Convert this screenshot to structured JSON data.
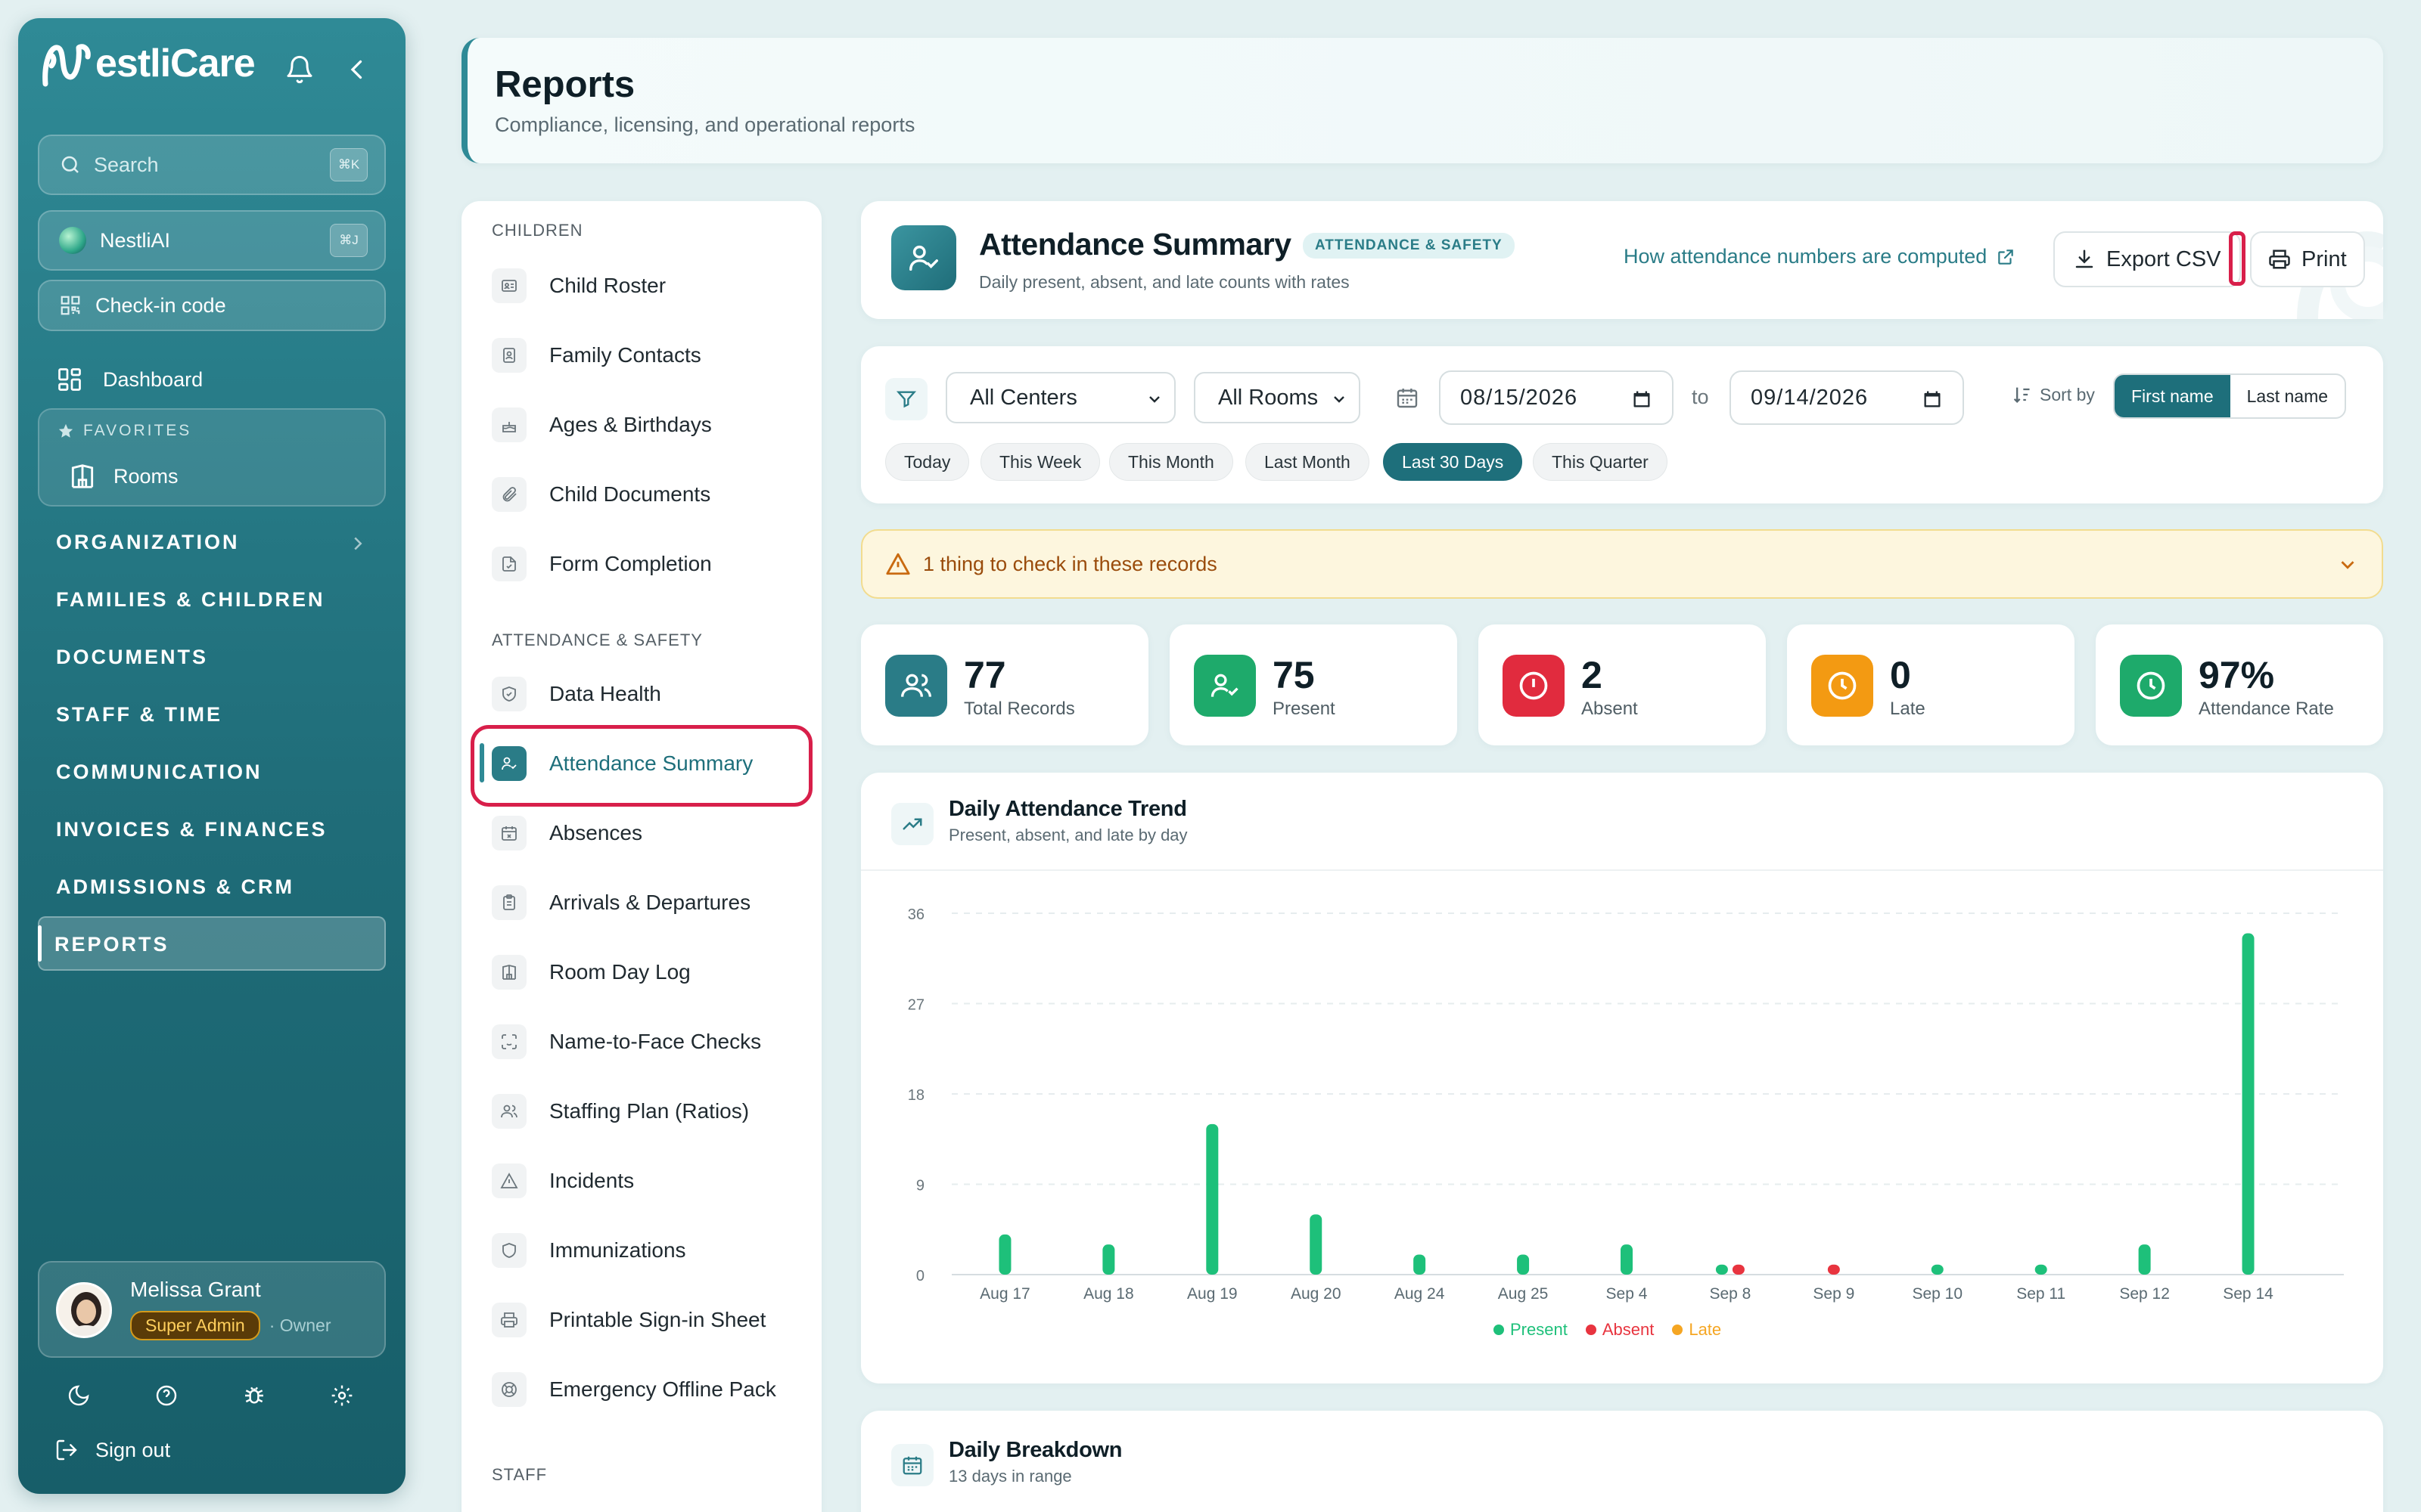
{
  "sidebar": {
    "brand": "estliCare",
    "search": {
      "label": "Search",
      "kbd": "⌘K"
    },
    "ai": {
      "label": "NestliAI",
      "kbd": "⌘J"
    },
    "checkin": "Check-in code",
    "dashboard": "Dashboard",
    "favorites": {
      "title": "FAVORITES",
      "items": [
        "Rooms"
      ]
    },
    "sections": [
      "ORGANIZATION",
      "FAMILIES & CHILDREN",
      "DOCUMENTS",
      "STAFF & TIME",
      "COMMUNICATION",
      "INVOICES & FINANCES",
      "ADMISSIONS & CRM",
      "REPORTS"
    ],
    "user": {
      "name": "Melissa Grant",
      "role": "Super Admin",
      "title": "· Owner"
    },
    "signout": "Sign out"
  },
  "header": {
    "title": "Reports",
    "subtitle": "Compliance, licensing, and operational reports"
  },
  "report_list": {
    "children_title": "CHILDREN",
    "children": [
      "Child Roster",
      "Family Contacts",
      "Ages & Birthdays",
      "Child Documents",
      "Form Completion"
    ],
    "attendance_title": "ATTENDANCE & SAFETY",
    "attendance": [
      "Data Health",
      "Attendance Summary",
      "Absences",
      "Arrivals & Departures",
      "Room Day Log",
      "Name-to-Face Checks",
      "Staffing Plan (Ratios)",
      "Incidents",
      "Immunizations",
      "Printable Sign-in Sheet",
      "Emergency Offline Pack"
    ],
    "staff_title": "STAFF"
  },
  "report": {
    "title": "Attendance Summary",
    "tag": "ATTENDANCE & SAFETY",
    "subtitle": "Daily present, absent, and late counts with rates",
    "help_link": "How attendance numbers are computed",
    "export_label": "Export CSV",
    "print_label": "Print"
  },
  "filters": {
    "center": "All Centers",
    "room": "All Rooms",
    "from": "08/15/2026",
    "to_label": "to",
    "to": "09/14/2026",
    "sort_label": "Sort by",
    "sort_options": [
      "First name",
      "Last name"
    ],
    "sort_selected": "First name",
    "quick_ranges": [
      "Today",
      "This Week",
      "This Month",
      "Last Month",
      "Last 30 Days",
      "This Quarter"
    ],
    "quick_selected": "Last 30 Days"
  },
  "alert": {
    "text": "1 thing to check in these records"
  },
  "stats": [
    {
      "value": "77",
      "label": "Total Records",
      "color": "#2a7c87"
    },
    {
      "value": "75",
      "label": "Present",
      "color": "#1eaa6b"
    },
    {
      "value": "2",
      "label": "Absent",
      "color": "#e12b3e"
    },
    {
      "value": "0",
      "label": "Late",
      "color": "#f39a12"
    },
    {
      "value": "97%",
      "label": "Attendance Rate",
      "color": "#1eaa6b"
    }
  ],
  "chart": {
    "title": "Daily Attendance Trend",
    "subtitle": "Present, absent, and late by day"
  },
  "chart_data": {
    "type": "bar",
    "categories": [
      "Aug 17",
      "Aug 18",
      "Aug 19",
      "Aug 20",
      "Aug 24",
      "Aug 25",
      "Sep 4",
      "Sep 8",
      "Sep 9",
      "Sep 10",
      "Sep 11",
      "Sep 12",
      "Sep 14"
    ],
    "series": [
      {
        "name": "Present",
        "color": "#1ec07a",
        "values": [
          4,
          3,
          15,
          6,
          2,
          2,
          3,
          1,
          0,
          1,
          1,
          3,
          34
        ]
      },
      {
        "name": "Absent",
        "color": "#e8343f",
        "values": [
          0,
          0,
          0,
          0,
          0,
          0,
          0,
          1,
          1,
          0,
          0,
          0,
          0
        ]
      },
      {
        "name": "Late",
        "color": "#f5a623",
        "values": [
          0,
          0,
          0,
          0,
          0,
          0,
          0,
          0,
          0,
          0,
          0,
          0,
          0
        ]
      }
    ],
    "yticks": [
      0,
      9,
      18,
      27,
      36
    ],
    "ylim": [
      0,
      36
    ],
    "grid": true,
    "legend": "bottom"
  },
  "breakdown": {
    "title": "Daily Breakdown",
    "subtitle": "13 days in range"
  }
}
